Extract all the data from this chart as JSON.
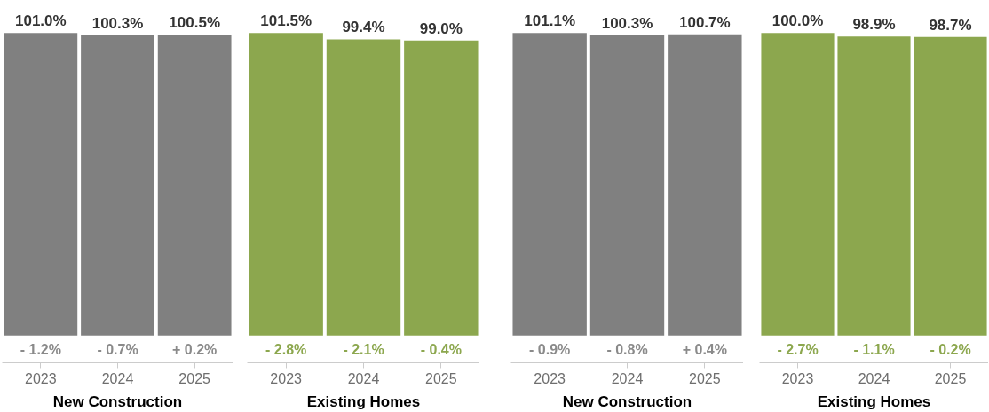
{
  "chart_data": [
    {
      "type": "bar",
      "categories": [
        "2023",
        "2024",
        "2025"
      ],
      "values": [
        101.0,
        100.3,
        100.5
      ],
      "color": "#808080",
      "xlabel": "New Construction",
      "data_labels": true,
      "value_labels": [
        "101.0%",
        "100.3%",
        "100.5%"
      ],
      "annotations": [
        "- 1.2%",
        "- 0.7%",
        "+ 0.2%"
      ],
      "grid": false
    },
    {
      "type": "bar",
      "categories": [
        "2023",
        "2024",
        "2025"
      ],
      "values": [
        101.5,
        99.4,
        99.0
      ],
      "color": "#8ca74e",
      "xlabel": "Existing Homes",
      "data_labels": true,
      "value_labels": [
        "101.5%",
        "99.4%",
        "99.0%"
      ],
      "annotations": [
        "- 2.8%",
        "- 2.1%",
        "- 0.4%"
      ],
      "grid": false
    },
    {
      "type": "bar",
      "categories": [
        "2023",
        "2024",
        "2025"
      ],
      "values": [
        101.1,
        100.3,
        100.7
      ],
      "color": "#808080",
      "xlabel": "New Construction",
      "data_labels": true,
      "value_labels": [
        "101.1%",
        "100.3%",
        "100.7%"
      ],
      "annotations": [
        "- 0.9%",
        "- 0.8%",
        "+ 0.4%"
      ],
      "grid": false
    },
    {
      "type": "bar",
      "categories": [
        "2023",
        "2024",
        "2025"
      ],
      "values": [
        100.0,
        98.9,
        98.7
      ],
      "color": "#8ca74e",
      "xlabel": "Existing Homes",
      "data_labels": true,
      "value_labels": [
        "100.0%",
        "98.9%",
        "98.7%"
      ],
      "annotations": [
        "- 2.7%",
        "- 1.1%",
        "- 0.2%"
      ],
      "grid": false
    }
  ]
}
